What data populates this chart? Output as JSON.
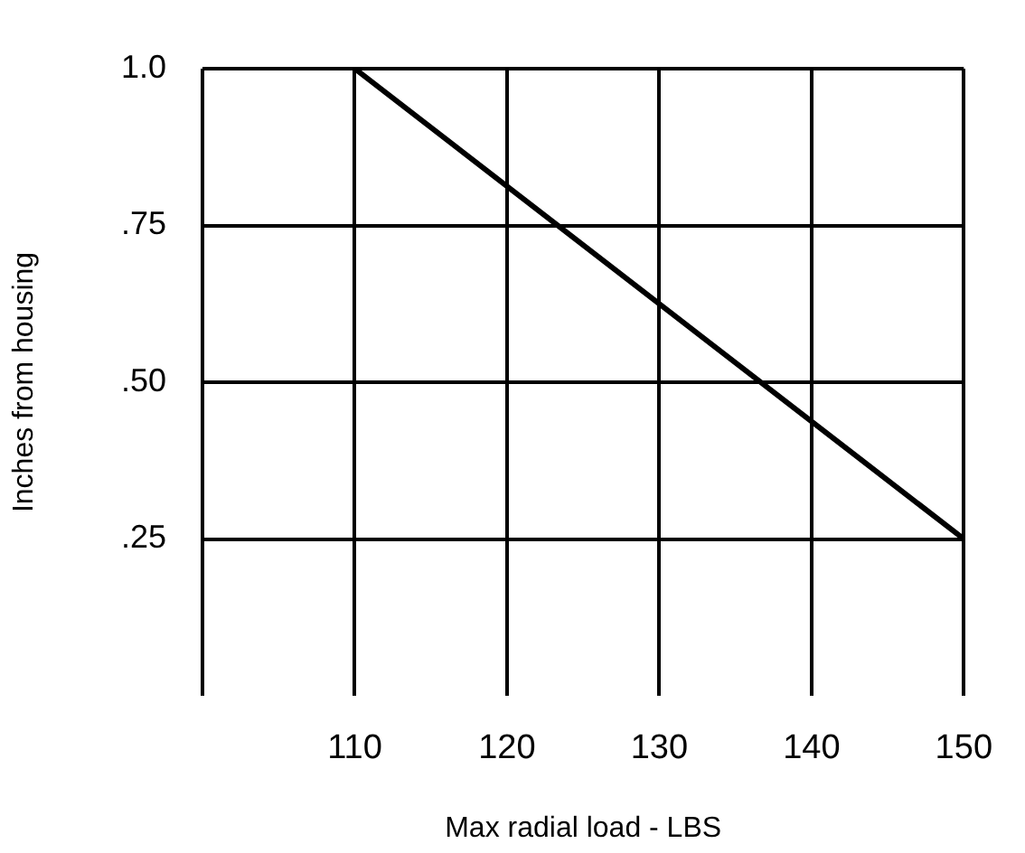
{
  "chart_data": {
    "type": "line",
    "xlabel": "Max radial load - LBS",
    "ylabel": "Inches from housing",
    "x": [
      110,
      150
    ],
    "series": [
      {
        "color": "#000000",
        "values": [
          1.0,
          0.25
        ]
      }
    ],
    "xlim": [
      100,
      150
    ],
    "xticks": [
      {
        "value": 100,
        "label": null
      },
      110,
      120,
      130,
      140,
      150
    ],
    "ylim": [
      0,
      1
    ],
    "yticks": [
      {
        "value": 0.25,
        "label": ".25"
      },
      {
        "value": 0.5,
        "label": ".50"
      },
      {
        "value": 0.75,
        "label": ".75"
      },
      {
        "value": 1.0,
        "label": "1.0"
      }
    ],
    "grid": true,
    "legend": false,
    "marker": "none",
    "line_style": "solid"
  }
}
